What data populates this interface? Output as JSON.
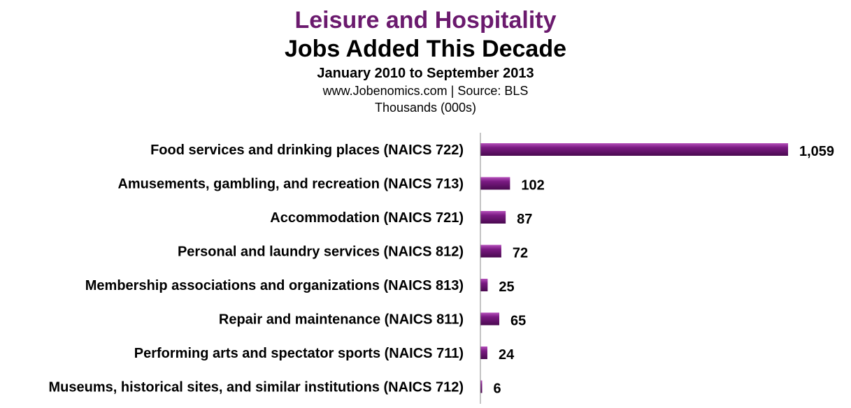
{
  "header": {
    "title": "Leisure and Hospitality",
    "subtitle": "Jobs Added This Decade",
    "date_range": "January  2010 to September 2013",
    "source": "www.Jobenomics.com  |  Source: BLS",
    "units": "Thousands (000s)"
  },
  "colors": {
    "title": "#6b1a6e",
    "bar": "#7a1a82",
    "bar_dark": "#4a0a50",
    "bar_light": "#b54fbb"
  },
  "chart_data": {
    "type": "bar",
    "orientation": "horizontal",
    "categories": [
      "Food services and drinking places (NAICS 722)",
      "Amusements, gambling, and recreation (NAICS 713)",
      "Accommodation (NAICS 721)",
      "Personal and laundry services (NAICS 812)",
      "Membership associations and organizations (NAICS 813)",
      "Repair and maintenance (NAICS 811)",
      "Performing arts and spectator sports (NAICS 711)",
      "Museums, historical sites, and similar institutions (NAICS 712)"
    ],
    "values": [
      1059,
      102,
      87,
      72,
      25,
      65,
      24,
      6
    ],
    "value_labels": [
      "1,059",
      "102",
      "87",
      "72",
      "25",
      "65",
      "24",
      "6"
    ],
    "title": "Leisure and Hospitality",
    "xlabel": "",
    "ylabel": "",
    "xlim": [
      0,
      1059
    ],
    "grid": false,
    "legend": "none"
  }
}
